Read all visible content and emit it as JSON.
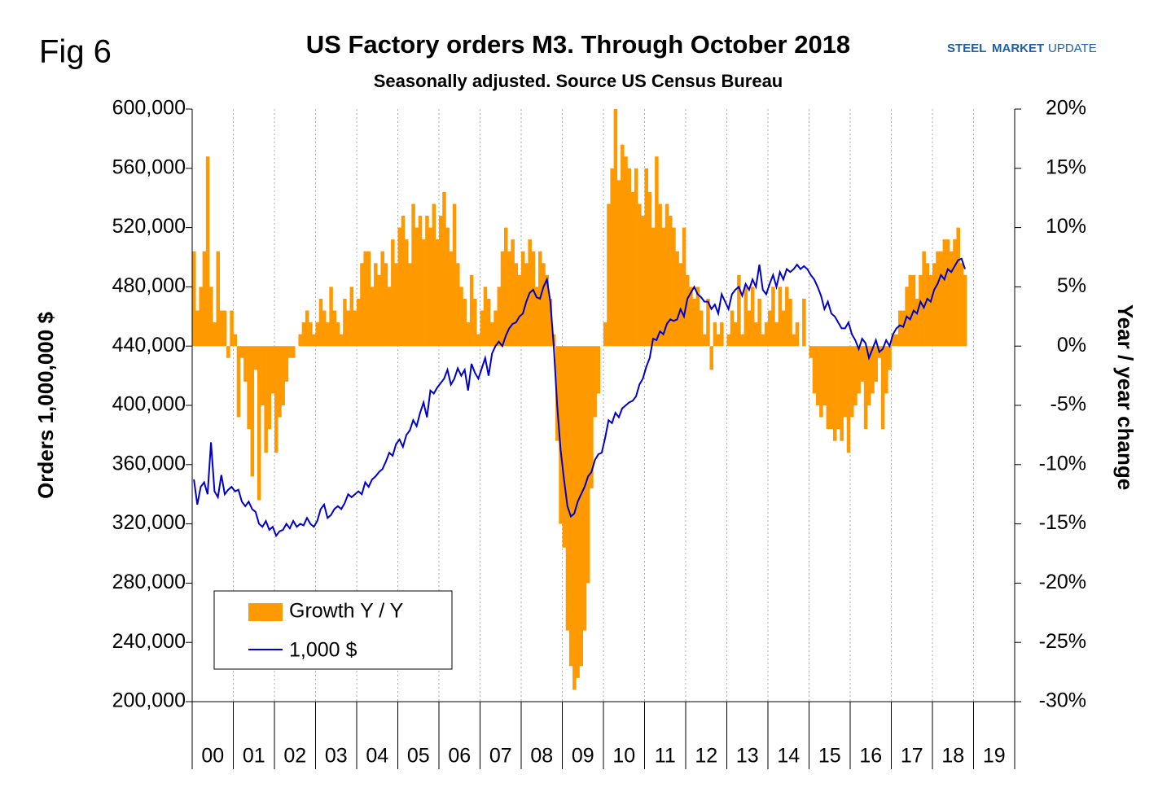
{
  "chart_data": {
    "type": "bar-line",
    "figure_label": "Fig 6",
    "title": "US Factory orders M3. Through October 2018",
    "subtitle": "Seasonally adjusted.  Source US Census Bureau",
    "logo": {
      "word1": "STEEL",
      "word2": "MARKET",
      "word3": "UPDATE"
    },
    "y_label": "Orders 1,000,000 $",
    "y2_label": "Year / year change",
    "categories": [
      "00",
      "01",
      "02",
      "03",
      "04",
      "05",
      "06",
      "07",
      "08",
      "09",
      "10",
      "11",
      "12",
      "13",
      "14",
      "15",
      "16",
      "17",
      "18",
      "19"
    ],
    "ylim": [
      200000,
      600000
    ],
    "yticks": [
      {
        "value": 200000,
        "label": "200,000"
      },
      {
        "value": 240000,
        "label": "240,000"
      },
      {
        "value": 280000,
        "label": "280,000"
      },
      {
        "value": 320000,
        "label": "320,000"
      },
      {
        "value": 360000,
        "label": "360,000"
      },
      {
        "value": 400000,
        "label": "400,000"
      },
      {
        "value": 440000,
        "label": "440,000"
      },
      {
        "value": 480000,
        "label": "480,000"
      },
      {
        "value": 520000,
        "label": "520,000"
      },
      {
        "value": 560000,
        "label": "560,000"
      },
      {
        "value": 600000,
        "label": "600,000"
      }
    ],
    "y2lim": [
      -30,
      20
    ],
    "y2ticks": [
      {
        "value": -30,
        "label": "-30%"
      },
      {
        "value": -25,
        "label": "-25%"
      },
      {
        "value": -20,
        "label": "-20%"
      },
      {
        "value": -15,
        "label": "-15%"
      },
      {
        "value": -10,
        "label": "-10%"
      },
      {
        "value": -5,
        "label": "-5%"
      },
      {
        "value": 0,
        "label": "0%"
      },
      {
        "value": 5,
        "label": "5%"
      },
      {
        "value": 10,
        "label": "10%"
      },
      {
        "value": 15,
        "label": "15%"
      },
      {
        "value": 20,
        "label": "20%"
      }
    ],
    "grid": true,
    "legend": "lower left",
    "series": [
      {
        "name": "Growth Y / Y",
        "type": "bar",
        "axis": "y2",
        "color": "#FF9900",
        "values": [
          [
            8,
            3,
            5,
            8,
            16,
            5,
            2,
            8,
            3,
            3,
            -1,
            3
          ],
          [
            1,
            -6,
            -1,
            -3,
            -7,
            -11,
            -2,
            -13,
            -5,
            -9,
            -7,
            -4
          ],
          [
            -9,
            -6,
            -5,
            -3,
            -1,
            -1,
            0,
            1,
            2,
            3,
            2,
            1
          ],
          [
            2,
            4,
            3,
            2,
            5,
            3,
            2,
            1,
            4,
            3,
            5,
            3
          ],
          [
            4,
            7,
            8,
            8,
            5,
            7,
            6,
            8,
            7,
            5,
            9,
            7
          ],
          [
            10,
            11,
            9,
            7,
            12,
            10,
            11,
            9,
            11,
            10,
            12,
            9
          ],
          [
            11,
            13,
            10,
            8,
            12,
            7,
            5,
            4,
            2,
            6,
            4,
            1
          ],
          [
            3,
            5,
            4,
            2,
            3,
            5,
            8,
            10,
            8,
            9,
            7,
            6
          ],
          [
            8,
            7,
            9,
            8,
            5,
            8,
            7,
            6,
            4,
            1,
            -8,
            -15
          ],
          [
            -17,
            -24,
            -27,
            -29,
            -28,
            -27,
            -24,
            -20,
            -12,
            -6,
            -4,
            0
          ],
          [
            2,
            12,
            15,
            20,
            14,
            17,
            16,
            15,
            13,
            15,
            12,
            11
          ],
          [
            15,
            13,
            10,
            16,
            12,
            10,
            12,
            11,
            10,
            8,
            7,
            10
          ],
          [
            6,
            5,
            4,
            5,
            3,
            1,
            4,
            -2,
            2,
            1,
            2,
            0
          ],
          [
            1,
            3,
            2,
            6,
            1,
            5,
            3,
            5,
            2,
            4,
            1,
            2
          ],
          [
            3,
            5,
            2,
            5,
            3,
            5,
            4,
            1,
            2,
            0,
            4,
            0
          ],
          [
            -1,
            -4,
            -5,
            -6,
            -5,
            -7,
            -7,
            -8,
            -7,
            -8,
            -6,
            -9
          ],
          [
            -6,
            -5,
            -4,
            -3,
            -7,
            -5,
            -4,
            -3,
            -1,
            -7,
            -4,
            -2
          ],
          [
            1,
            1,
            3,
            3,
            5,
            6,
            6,
            4,
            6,
            8,
            7,
            6
          ],
          [
            7,
            8,
            8,
            9,
            9,
            8,
            9,
            10,
            7,
            6
          ],
          []
        ]
      },
      {
        "name": "1,000 $",
        "type": "line",
        "axis": "y",
        "color": "#0000CC",
        "values": [
          [
            350000,
            333000,
            345000,
            348000,
            340000,
            375000,
            342000,
            338000,
            353000,
            340000,
            343000,
            345000
          ],
          [
            342000,
            343000,
            335000,
            332000,
            335000,
            330000,
            328000,
            320000,
            318000,
            322000,
            316000,
            318000
          ],
          [
            312000,
            315000,
            316000,
            320000,
            317000,
            322000,
            318000,
            320000,
            319000,
            324000,
            320000,
            318000
          ],
          [
            322000,
            330000,
            333000,
            324000,
            326000,
            330000,
            332000,
            330000,
            334000,
            340000,
            338000,
            340000
          ],
          [
            342000,
            340000,
            348000,
            345000,
            350000,
            352000,
            355000,
            357000,
            362000,
            368000,
            366000,
            374000
          ],
          [
            377000,
            372000,
            380000,
            383000,
            390000,
            386000,
            395000,
            402000,
            392000,
            410000,
            408000,
            412000
          ],
          [
            415000,
            418000,
            424000,
            414000,
            418000,
            425000,
            420000,
            424000,
            410000,
            428000,
            422000,
            418000
          ],
          [
            425000,
            432000,
            420000,
            435000,
            440000,
            443000,
            440000,
            447000,
            452000,
            455000,
            456000,
            460000
          ],
          [
            462000,
            470000,
            476000,
            478000,
            473000,
            472000,
            480000,
            485000,
            470000,
            440000,
            400000,
            370000
          ],
          [
            350000,
            332000,
            325000,
            327000,
            335000,
            340000,
            345000,
            352000,
            355000,
            363000,
            367000,
            368000
          ],
          [
            378000,
            390000,
            388000,
            395000,
            392000,
            398000,
            400000,
            402000,
            403000,
            406000,
            414000,
            418000
          ],
          [
            426000,
            432000,
            445000,
            444000,
            450000,
            448000,
            455000,
            458000,
            457000,
            458000,
            465000,
            460000
          ],
          [
            472000,
            476000,
            480000,
            475000,
            473000,
            470000,
            470000,
            465000,
            468000,
            462000,
            475000,
            470000
          ],
          [
            465000,
            475000,
            478000,
            480000,
            474000,
            482000,
            478000,
            485000,
            480000,
            495000,
            478000,
            475000
          ],
          [
            482000,
            488000,
            480000,
            490000,
            485000,
            492000,
            490000,
            492000,
            495000,
            492000,
            494000,
            492000
          ],
          [
            488000,
            485000,
            480000,
            474000,
            465000,
            470000,
            462000,
            460000,
            456000,
            452000,
            452000,
            456000
          ],
          [
            448000,
            444000,
            438000,
            445000,
            442000,
            432000,
            438000,
            444000,
            436000,
            438000,
            444000,
            440000
          ],
          [
            448000,
            452000,
            454000,
            453000,
            460000,
            458000,
            464000,
            462000,
            470000,
            466000,
            472000,
            470000
          ],
          [
            478000,
            482000,
            488000,
            485000,
            492000,
            490000,
            494000,
            498000,
            499000,
            492000
          ],
          []
        ]
      }
    ]
  }
}
